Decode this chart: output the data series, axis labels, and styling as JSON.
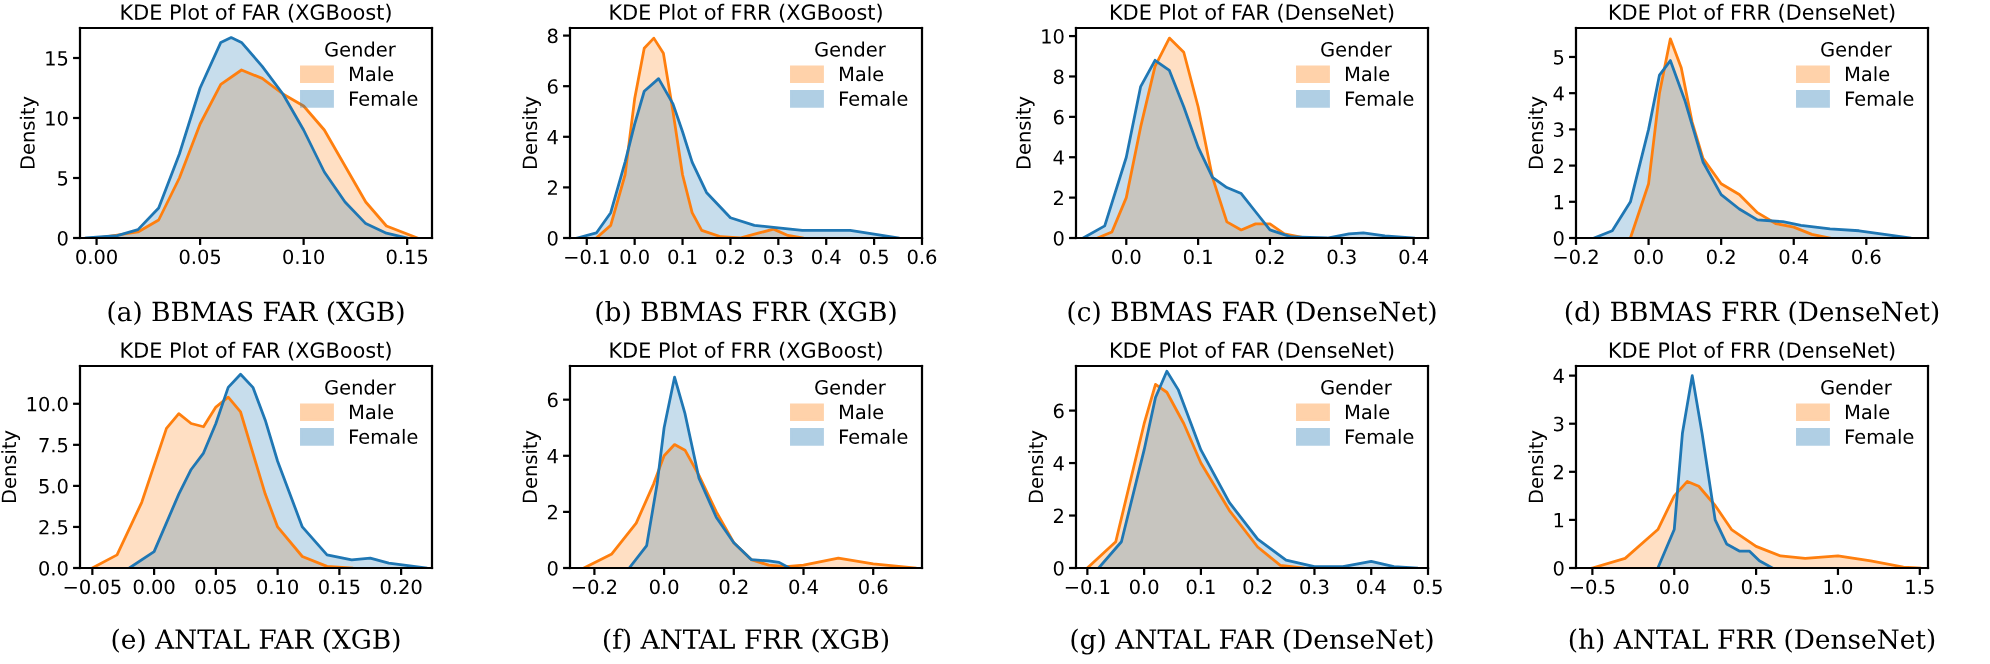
{
  "chart_data": [
    {
      "type": "area",
      "title": "KDE Plot of FAR (XGBoost)",
      "ylabel": "Density",
      "legend_title": "Gender",
      "legend": "top right",
      "grid": false,
      "annotations": [
        "(a) BBMAS FAR (XGB)"
      ],
      "xlim": [
        -0.008,
        0.162
      ],
      "xticks": [
        {
          "value": 0,
          "label": "0.00"
        },
        {
          "value": 0.05,
          "label": "0.05"
        },
        {
          "value": 0.1,
          "label": "0.10"
        },
        {
          "value": 0.15,
          "label": "0.15"
        }
      ],
      "ylim": [
        0,
        17.5
      ],
      "yticks": [
        0,
        5,
        10,
        15
      ],
      "series": [
        {
          "name": "Male",
          "color": "#ff7f0e",
          "x": [
            0.0,
            0.02,
            0.03,
            0.04,
            0.05,
            0.06,
            0.07,
            0.08,
            0.09,
            0.1,
            0.11,
            0.12,
            0.13,
            0.14,
            0.155
          ],
          "values": [
            0,
            0.5,
            1.5,
            5,
            9.5,
            12.8,
            14,
            13.3,
            12,
            11,
            9,
            6,
            3,
            1,
            0
          ]
        },
        {
          "name": "Female",
          "color": "#1f77b4",
          "x": [
            -0.005,
            0.01,
            0.02,
            0.03,
            0.04,
            0.05,
            0.06,
            0.065,
            0.07,
            0.08,
            0.09,
            0.1,
            0.11,
            0.12,
            0.13,
            0.14,
            0.15
          ],
          "values": [
            0,
            0.2,
            0.7,
            2.5,
            7,
            12.5,
            16.3,
            16.7,
            16.3,
            14.3,
            12,
            9,
            5.5,
            3,
            1.2,
            0.4,
            0
          ]
        }
      ]
    },
    {
      "type": "area",
      "title": "KDE Plot of FRR (XGBoost)",
      "ylabel": "Density",
      "legend_title": "Gender",
      "legend": "top right",
      "grid": false,
      "annotations": [
        "(b) BBMAS FRR (XGB)"
      ],
      "xlim": [
        -0.135,
        0.6
      ],
      "xticks": [
        {
          "value": -0.1,
          "label": "−0.1"
        },
        {
          "value": 0,
          "label": "0.0"
        },
        {
          "value": 0.1,
          "label": "0.1"
        },
        {
          "value": 0.2,
          "label": "0.2"
        },
        {
          "value": 0.3,
          "label": "0.3"
        },
        {
          "value": 0.4,
          "label": "0.4"
        },
        {
          "value": 0.5,
          "label": "0.5"
        },
        {
          "value": 0.6,
          "label": "0.6"
        }
      ],
      "ylim": [
        0,
        8.3
      ],
      "yticks": [
        0,
        2,
        4,
        6,
        8
      ],
      "series": [
        {
          "name": "Male",
          "color": "#ff7f0e",
          "x": [
            -0.08,
            -0.05,
            -0.02,
            0.0,
            0.02,
            0.04,
            0.06,
            0.08,
            0.1,
            0.12,
            0.14,
            0.18,
            0.22,
            0.26,
            0.29,
            0.32,
            0.35
          ],
          "values": [
            0,
            0.5,
            2.5,
            5.5,
            7.5,
            7.9,
            7.3,
            5,
            2.5,
            1,
            0.3,
            0.05,
            0,
            0.2,
            0.35,
            0.1,
            0
          ]
        },
        {
          "name": "Female",
          "color": "#1f77b4",
          "x": [
            -0.12,
            -0.08,
            -0.05,
            -0.02,
            0.0,
            0.02,
            0.05,
            0.08,
            0.1,
            0.12,
            0.15,
            0.2,
            0.25,
            0.3,
            0.35,
            0.4,
            0.45,
            0.5,
            0.55
          ],
          "values": [
            0,
            0.2,
            1,
            3,
            4.5,
            5.8,
            6.3,
            5.3,
            4.2,
            3,
            1.8,
            0.8,
            0.5,
            0.4,
            0.3,
            0.3,
            0.3,
            0.15,
            0
          ]
        }
      ]
    },
    {
      "type": "area",
      "title": "KDE Plot of FAR (DenseNet)",
      "ylabel": "Density",
      "legend_title": "Gender",
      "legend": "top right",
      "grid": false,
      "annotations": [
        "(c) BBMAS FAR (DenseNet)"
      ],
      "xlim": [
        -0.07,
        0.42
      ],
      "xticks": [
        {
          "value": 0,
          "label": "0.0"
        },
        {
          "value": 0.1,
          "label": "0.1"
        },
        {
          "value": 0.2,
          "label": "0.2"
        },
        {
          "value": 0.3,
          "label": "0.3"
        },
        {
          "value": 0.4,
          "label": "0.4"
        }
      ],
      "ylim": [
        0,
        10.4
      ],
      "yticks": [
        0,
        2,
        4,
        6,
        8,
        10
      ],
      "series": [
        {
          "name": "Male",
          "color": "#ff7f0e",
          "x": [
            -0.04,
            -0.02,
            0.0,
            0.02,
            0.04,
            0.06,
            0.08,
            0.1,
            0.12,
            0.14,
            0.16,
            0.18,
            0.2,
            0.22,
            0.25
          ],
          "values": [
            0,
            0.3,
            2,
            5.5,
            8.5,
            9.9,
            9.2,
            6.5,
            3,
            0.8,
            0.4,
            0.7,
            0.7,
            0.2,
            0
          ]
        },
        {
          "name": "Female",
          "color": "#1f77b4",
          "x": [
            -0.06,
            -0.03,
            0.0,
            0.02,
            0.04,
            0.06,
            0.08,
            0.1,
            0.12,
            0.14,
            0.16,
            0.18,
            0.2,
            0.23,
            0.28,
            0.31,
            0.33,
            0.36,
            0.4
          ],
          "values": [
            0,
            0.6,
            4,
            7.5,
            8.8,
            8.3,
            6.5,
            4.5,
            3,
            2.5,
            2.2,
            1.3,
            0.4,
            0.05,
            0,
            0.2,
            0.25,
            0.1,
            0
          ]
        }
      ]
    },
    {
      "type": "area",
      "title": "KDE Plot of FRR (DenseNet)",
      "ylabel": "Density",
      "legend_title": "Gender",
      "legend": "top right",
      "grid": false,
      "annotations": [
        "(d) BBMAS FRR (DenseNet)"
      ],
      "xlim": [
        -0.2,
        0.77
      ],
      "xticks": [
        {
          "value": -0.2,
          "label": "−0.2"
        },
        {
          "value": 0,
          "label": "0.0"
        },
        {
          "value": 0.2,
          "label": "0.2"
        },
        {
          "value": 0.4,
          "label": "0.4"
        },
        {
          "value": 0.6,
          "label": "0.6"
        }
      ],
      "ylim": [
        0,
        5.8
      ],
      "yticks": [
        0,
        1,
        2,
        3,
        4,
        5
      ],
      "series": [
        {
          "name": "Male",
          "color": "#ff7f0e",
          "x": [
            -0.05,
            0.0,
            0.03,
            0.06,
            0.09,
            0.12,
            0.15,
            0.2,
            0.25,
            0.3,
            0.35,
            0.4,
            0.45,
            0.5
          ],
          "values": [
            0,
            1.5,
            4,
            5.5,
            4.7,
            3.2,
            2.2,
            1.5,
            1.2,
            0.7,
            0.4,
            0.3,
            0.1,
            0
          ]
        },
        {
          "name": "Female",
          "color": "#1f77b4",
          "x": [
            -0.15,
            -0.1,
            -0.05,
            0.0,
            0.03,
            0.06,
            0.1,
            0.15,
            0.2,
            0.25,
            0.3,
            0.37,
            0.42,
            0.5,
            0.58,
            0.65,
            0.72
          ],
          "values": [
            0,
            0.2,
            1,
            3,
            4.5,
            4.9,
            3.8,
            2.1,
            1.2,
            0.8,
            0.5,
            0.45,
            0.35,
            0.25,
            0.2,
            0.1,
            0
          ]
        }
      ]
    },
    {
      "type": "area",
      "title": "KDE Plot of FAR (XGBoost)",
      "ylabel": "Density",
      "legend_title": "Gender",
      "legend": "top right",
      "grid": false,
      "annotations": [
        "(e) ANTAL FAR (XGB)"
      ],
      "xlim": [
        -0.06,
        0.225
      ],
      "xticks": [
        {
          "value": -0.05,
          "label": "−0.05"
        },
        {
          "value": 0,
          "label": "0.00"
        },
        {
          "value": 0.05,
          "label": "0.05"
        },
        {
          "value": 0.1,
          "label": "0.10"
        },
        {
          "value": 0.15,
          "label": "0.15"
        },
        {
          "value": 0.2,
          "label": "0.20"
        }
      ],
      "ylim": [
        0,
        12.3
      ],
      "yticks": [
        {
          "value": 0,
          "label": "0.0"
        },
        {
          "value": 2.5,
          "label": "2.5"
        },
        {
          "value": 5,
          "label": "5.0"
        },
        {
          "value": 7.5,
          "label": "7.5"
        },
        {
          "value": 10,
          "label": "10.0"
        }
      ],
      "series": [
        {
          "name": "Male",
          "color": "#ff7f0e",
          "x": [
            -0.05,
            -0.03,
            -0.01,
            0.01,
            0.02,
            0.03,
            0.04,
            0.05,
            0.06,
            0.07,
            0.08,
            0.09,
            0.1,
            0.12,
            0.14,
            0.16
          ],
          "values": [
            0,
            0.8,
            4,
            8.5,
            9.4,
            8.8,
            8.6,
            9.8,
            10.4,
            9.5,
            7,
            4.5,
            2.5,
            0.7,
            0.1,
            0
          ]
        },
        {
          "name": "Female",
          "color": "#1f77b4",
          "x": [
            -0.02,
            0.0,
            0.02,
            0.03,
            0.04,
            0.05,
            0.06,
            0.07,
            0.08,
            0.09,
            0.1,
            0.12,
            0.14,
            0.16,
            0.175,
            0.19,
            0.22
          ],
          "values": [
            0,
            1,
            4.5,
            6,
            7,
            8.8,
            11,
            11.8,
            11,
            9,
            6.5,
            2.5,
            0.8,
            0.5,
            0.6,
            0.3,
            0
          ]
        }
      ]
    },
    {
      "type": "area",
      "title": "KDE Plot of FRR (XGBoost)",
      "ylabel": "Density",
      "legend_title": "Gender",
      "legend": "top right",
      "grid": false,
      "annotations": [
        "(f) ANTAL FRR (XGB)"
      ],
      "xlim": [
        -0.27,
        0.74
      ],
      "xticks": [
        {
          "value": -0.2,
          "label": "−0.2"
        },
        {
          "value": 0,
          "label": "0.0"
        },
        {
          "value": 0.2,
          "label": "0.2"
        },
        {
          "value": 0.4,
          "label": "0.4"
        },
        {
          "value": 0.6,
          "label": "0.6"
        }
      ],
      "ylim": [
        0,
        7.2
      ],
      "yticks": [
        0,
        2,
        4,
        6
      ],
      "series": [
        {
          "name": "Male",
          "color": "#ff7f0e",
          "x": [
            -0.23,
            -0.15,
            -0.08,
            -0.03,
            0.0,
            0.03,
            0.06,
            0.1,
            0.15,
            0.2,
            0.25,
            0.3,
            0.35,
            0.4,
            0.5,
            0.6,
            0.72
          ],
          "values": [
            0,
            0.5,
            1.6,
            3,
            4,
            4.4,
            4.2,
            3.3,
            2,
            0.9,
            0.3,
            0.1,
            0.05,
            0.1,
            0.35,
            0.15,
            0
          ]
        },
        {
          "name": "Female",
          "color": "#1f77b4",
          "x": [
            -0.1,
            -0.05,
            -0.02,
            0.0,
            0.03,
            0.06,
            0.1,
            0.15,
            0.2,
            0.25,
            0.3,
            0.33,
            0.36
          ],
          "values": [
            0,
            0.8,
            3,
            5,
            6.8,
            5.5,
            3.2,
            1.8,
            0.9,
            0.3,
            0.25,
            0.2,
            0
          ]
        }
      ]
    },
    {
      "type": "area",
      "title": "KDE Plot of FAR (DenseNet)",
      "ylabel": "Density",
      "legend_title": "Gender",
      "legend": "top right",
      "grid": false,
      "annotations": [
        "(g) ANTAL FAR (DenseNet)"
      ],
      "xlim": [
        -0.12,
        0.5
      ],
      "xticks": [
        {
          "value": -0.1,
          "label": "−0.1"
        },
        {
          "value": 0,
          "label": "0.0"
        },
        {
          "value": 0.1,
          "label": "0.1"
        },
        {
          "value": 0.2,
          "label": "0.2"
        },
        {
          "value": 0.3,
          "label": "0.3"
        },
        {
          "value": 0.4,
          "label": "0.4"
        },
        {
          "value": 0.5,
          "label": "0.5"
        }
      ],
      "ylim": [
        0,
        7.7
      ],
      "yticks": [
        0,
        2,
        4,
        6
      ],
      "series": [
        {
          "name": "Male",
          "color": "#ff7f0e",
          "x": [
            -0.1,
            -0.05,
            0.0,
            0.02,
            0.04,
            0.07,
            0.1,
            0.15,
            0.2,
            0.24,
            0.28
          ],
          "values": [
            0,
            1,
            5.5,
            7,
            6.7,
            5.5,
            4,
            2.2,
            0.8,
            0.1,
            0
          ]
        },
        {
          "name": "Female",
          "color": "#1f77b4",
          "x": [
            -0.08,
            -0.04,
            0.0,
            0.02,
            0.04,
            0.06,
            0.1,
            0.15,
            0.2,
            0.25,
            0.3,
            0.35,
            0.4,
            0.44,
            0.48
          ],
          "values": [
            0,
            1,
            4.5,
            6.5,
            7.5,
            6.8,
            4.5,
            2.5,
            1.1,
            0.3,
            0.05,
            0.05,
            0.25,
            0.05,
            0
          ]
        }
      ]
    },
    {
      "type": "area",
      "title": "KDE Plot of FRR (DenseNet)",
      "ylabel": "Density",
      "legend_title": "Gender",
      "legend": "top right",
      "grid": false,
      "annotations": [
        "(h) ANTAL FRR (DenseNet)"
      ],
      "xlim": [
        -0.6,
        1.55
      ],
      "xticks": [
        {
          "value": -0.5,
          "label": "−0.5"
        },
        {
          "value": 0,
          "label": "0.0"
        },
        {
          "value": 0.5,
          "label": "0.5"
        },
        {
          "value": 1,
          "label": "1.0"
        },
        {
          "value": 1.5,
          "label": "1.5"
        }
      ],
      "ylim": [
        0,
        4.2
      ],
      "yticks": [
        0,
        1,
        2,
        3,
        4
      ],
      "series": [
        {
          "name": "Male",
          "color": "#ff7f0e",
          "x": [
            -0.5,
            -0.3,
            -0.1,
            0.0,
            0.08,
            0.15,
            0.25,
            0.35,
            0.5,
            0.65,
            0.8,
            1.0,
            1.2,
            1.4,
            1.5
          ],
          "values": [
            0,
            0.2,
            0.8,
            1.5,
            1.8,
            1.7,
            1.3,
            0.8,
            0.45,
            0.25,
            0.2,
            0.25,
            0.15,
            0.02,
            0
          ]
        },
        {
          "name": "Female",
          "color": "#1f77b4",
          "x": [
            -0.1,
            0.0,
            0.05,
            0.11,
            0.17,
            0.25,
            0.32,
            0.4,
            0.46,
            0.52,
            0.6
          ],
          "values": [
            0,
            0.8,
            2.8,
            4.0,
            2.8,
            1,
            0.5,
            0.35,
            0.35,
            0.15,
            0
          ]
        }
      ]
    }
  ]
}
